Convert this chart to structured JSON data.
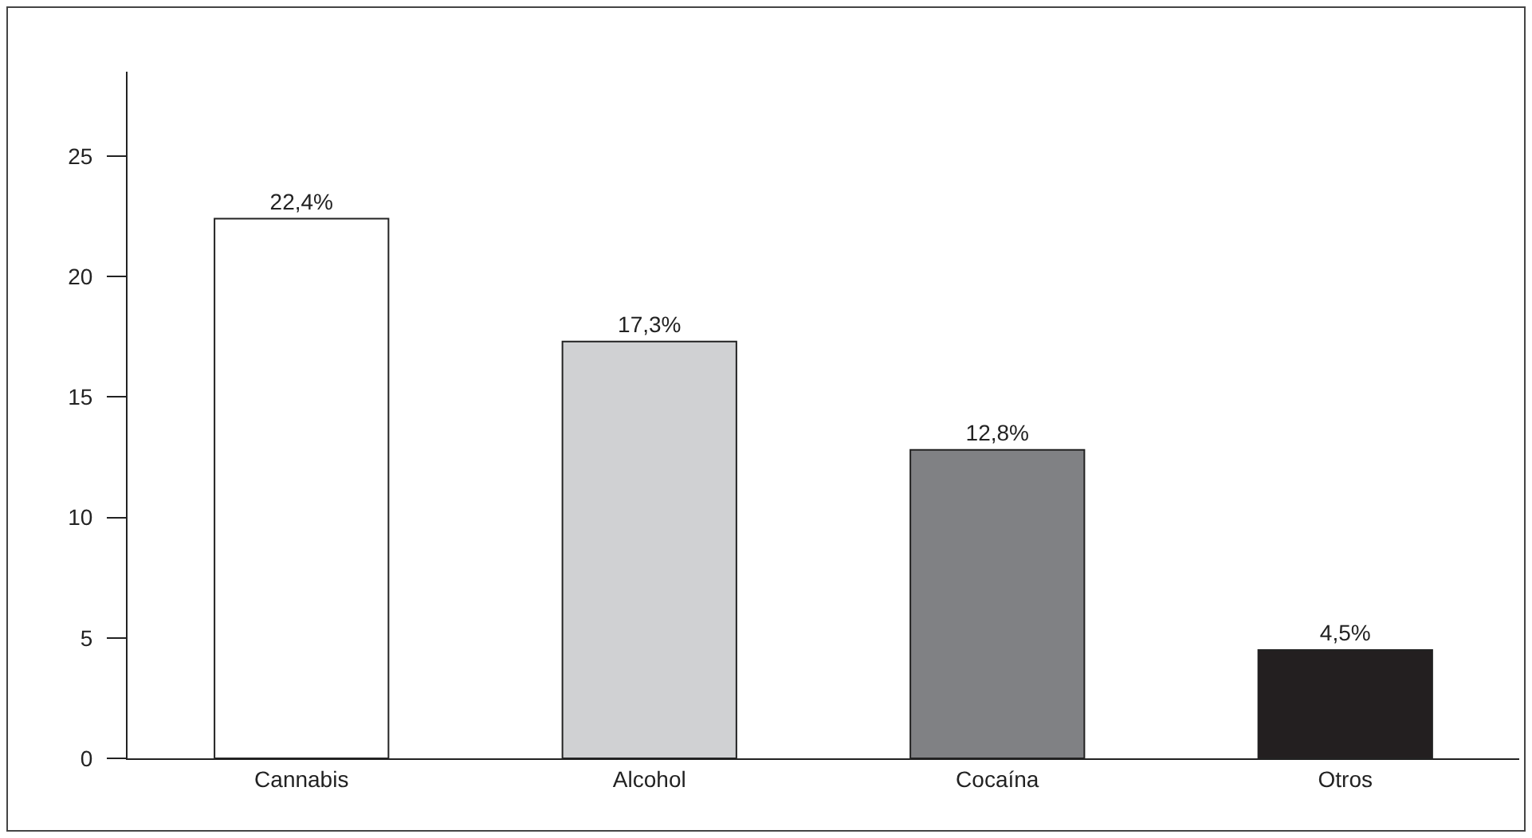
{
  "chart_data": {
    "type": "bar",
    "categories": [
      "Cannabis",
      "Alcohol",
      "Cocaína",
      "Otros"
    ],
    "values": [
      22.4,
      17.3,
      12.8,
      4.5
    ],
    "value_labels": [
      "22,4%",
      "17,3%",
      "12,8%",
      "4,5%"
    ],
    "colors": [
      "#ffffff",
      "#d0d1d3",
      "#808184",
      "#231f20"
    ],
    "ylim": [
      0,
      28.5
    ],
    "yticks": [
      0,
      5,
      10,
      15,
      20,
      25
    ],
    "grid": false
  }
}
